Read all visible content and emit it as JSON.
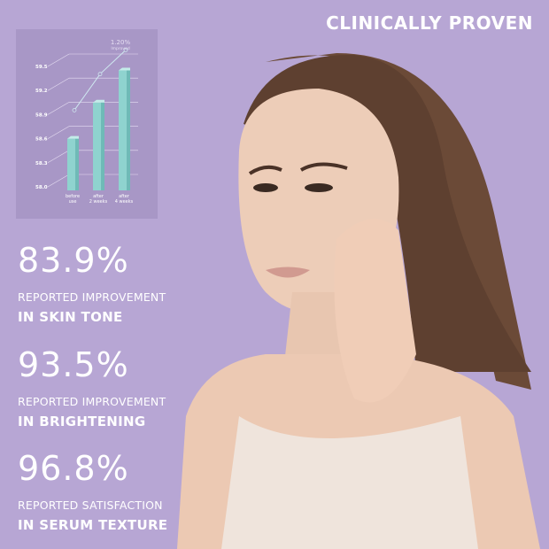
{
  "headline": "CLINICALLY PROVEN",
  "stats": [
    {
      "value": "83.9%",
      "line1": "REPORTED IMPROVEMENT",
      "line2": "IN SKIN TONE"
    },
    {
      "value": "93.5%",
      "line1": "REPORTED IMPROVEMENT",
      "line2": "IN BRIGHTENING"
    },
    {
      "value": "96.8%",
      "line1": "REPORTED SATISFACTION",
      "line2": "IN SERUM TEXTURE"
    }
  ],
  "colors": {
    "background": "#b7a6d4",
    "panel": "#a897c6",
    "bar": "#8fd3cf",
    "text": "#ffffff"
  },
  "chart_data": {
    "type": "bar",
    "categories": [
      "before use",
      "after 2 weeks",
      "after 4 weeks"
    ],
    "values": [
      58.6,
      59.05,
      59.45
    ],
    "line_values": [
      58.8,
      59.25,
      59.55
    ],
    "yticks": [
      "59.5",
      "59.2",
      "58.9",
      "58.6",
      "58.3",
      "58.0"
    ],
    "ylim": [
      58.0,
      59.6
    ],
    "annotation": "1.20%",
    "annotation_sub": "Improved",
    "grid": true
  }
}
